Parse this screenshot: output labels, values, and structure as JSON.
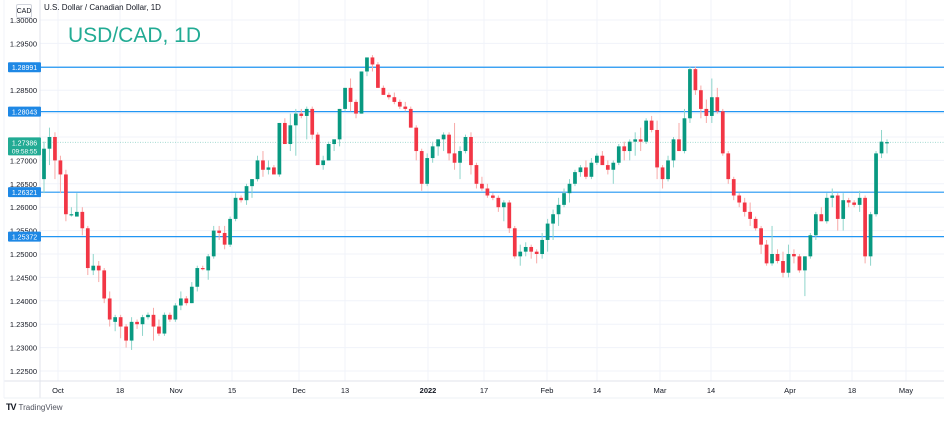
{
  "header": {
    "symbol_badge": "CAD",
    "legend": "U.S. Dollar / Canadian Dollar, 1D",
    "watermark": "USD/CAD, 1D"
  },
  "footer": {
    "logo_mark": "TV",
    "logo_text": "TradingView"
  },
  "colors": {
    "up": "#26a69a",
    "up_body": "#089981",
    "down": "#f23645",
    "down_wick": "#f7a9a7",
    "up_wick": "#8fd5cb",
    "level_line": "#2196f3",
    "level_label_bg": "#1e88e5",
    "last_price_bg": "#22ab94",
    "grid": "#f0f3fa"
  },
  "price_axis": {
    "ticks": [
      "1.30000",
      "1.29500",
      "1.28500",
      "1.27000",
      "1.26500",
      "1.26000",
      "1.25500",
      "1.25000",
      "1.24500",
      "1.24000",
      "1.23500",
      "1.23000",
      "1.22500"
    ],
    "level_labels": [
      "1.28991",
      "1.28043",
      "1.26321",
      "1.25372"
    ],
    "last_price": "1.27386",
    "countdown": "09:58:55"
  },
  "time_axis": {
    "labels": [
      "Oct",
      "18",
      "Nov",
      "15",
      "Dec",
      "13",
      "2022",
      "17",
      "Feb",
      "14",
      "Mar",
      "14",
      "Apr",
      "18",
      "May"
    ]
  },
  "chart_data": {
    "type": "candlestick",
    "title": "USD/CAD, 1D",
    "subtitle": "U.S. Dollar / Canadian Dollar, 1D",
    "xlabel": "",
    "ylabel": "CAD",
    "ylim": [
      1.2225,
      1.3005
    ],
    "grid": true,
    "x_tick_labels": [
      "Oct",
      "18",
      "Nov",
      "15",
      "Dec",
      "13",
      "2022",
      "17",
      "Feb",
      "14",
      "Mar",
      "14",
      "Apr",
      "18",
      "May"
    ],
    "y_tick_labels": [
      1.3,
      1.295,
      1.29,
      1.285,
      1.28,
      1.275,
      1.27,
      1.265,
      1.26,
      1.255,
      1.25,
      1.245,
      1.24,
      1.235,
      1.23,
      1.225
    ],
    "horizontal_levels": [
      1.28991,
      1.28043,
      1.26321,
      1.25372
    ],
    "last_price": 1.27386,
    "annotations": [
      "USD/CAD, 1D"
    ],
    "candles": [
      [
        1.266,
        1.274,
        1.263,
        1.2725
      ],
      [
        1.2725,
        1.277,
        1.269,
        1.275
      ],
      [
        1.275,
        1.276,
        1.266,
        1.27
      ],
      [
        1.27,
        1.271,
        1.263,
        1.267
      ],
      [
        1.267,
        1.268,
        1.257,
        1.2585
      ],
      [
        1.2585,
        1.26,
        1.258,
        1.2585
      ],
      [
        1.258,
        1.263,
        1.258,
        1.259
      ],
      [
        1.259,
        1.26,
        1.254,
        1.2555
      ],
      [
        1.2555,
        1.256,
        1.2455,
        1.247
      ],
      [
        1.2465,
        1.25,
        1.2455,
        1.2475
      ],
      [
        1.2475,
        1.2485,
        1.244,
        1.2465
      ],
      [
        1.2465,
        1.247,
        1.2395,
        1.2405
      ],
      [
        1.2405,
        1.242,
        1.2345,
        1.236
      ],
      [
        1.2355,
        1.237,
        1.2335,
        1.2365
      ],
      [
        1.2365,
        1.237,
        1.232,
        1.2345
      ],
      [
        1.2345,
        1.235,
        1.23,
        1.2315
      ],
      [
        1.2315,
        1.2365,
        1.2295,
        1.2355
      ],
      [
        1.2355,
        1.236,
        1.234,
        1.235
      ],
      [
        1.235,
        1.237,
        1.2325,
        1.2365
      ],
      [
        1.2365,
        1.2375,
        1.236,
        1.237
      ],
      [
        1.237,
        1.2385,
        1.2315,
        1.2345
      ],
      [
        1.2345,
        1.236,
        1.2325,
        1.233
      ],
      [
        1.233,
        1.2375,
        1.2325,
        1.237
      ],
      [
        1.237,
        1.2375,
        1.2355,
        1.236
      ],
      [
        1.236,
        1.2395,
        1.2355,
        1.239
      ],
      [
        1.239,
        1.242,
        1.238,
        1.2405
      ],
      [
        1.2405,
        1.241,
        1.239,
        1.2395
      ],
      [
        1.2395,
        1.244,
        1.2395,
        1.243
      ],
      [
        1.243,
        1.2475,
        1.242,
        1.247
      ],
      [
        1.247,
        1.2475,
        1.2465,
        1.2468
      ],
      [
        1.2465,
        1.25,
        1.2445,
        1.2495
      ],
      [
        1.2495,
        1.256,
        1.249,
        1.255
      ],
      [
        1.255,
        1.256,
        1.253,
        1.2545
      ],
      [
        1.2545,
        1.256,
        1.251,
        1.252
      ],
      [
        1.252,
        1.258,
        1.2515,
        1.2575
      ],
      [
        1.2575,
        1.263,
        1.257,
        1.262
      ],
      [
        1.262,
        1.2625,
        1.261,
        1.2615
      ],
      [
        1.2615,
        1.265,
        1.2605,
        1.2645
      ],
      [
        1.2645,
        1.266,
        1.262,
        1.266
      ],
      [
        1.266,
        1.271,
        1.2655,
        1.27
      ],
      [
        1.27,
        1.272,
        1.2665,
        1.268
      ],
      [
        1.268,
        1.27,
        1.267,
        1.2685
      ],
      [
        1.2685,
        1.269,
        1.267,
        1.267
      ],
      [
        1.267,
        1.278,
        1.2665,
        1.278
      ],
      [
        1.278,
        1.279,
        1.2735,
        1.2735
      ],
      [
        1.2735,
        1.28,
        1.272,
        1.2775
      ],
      [
        1.2775,
        1.281,
        1.271,
        1.28
      ],
      [
        1.28,
        1.281,
        1.279,
        1.2795
      ],
      [
        1.2795,
        1.2815,
        1.2745,
        1.281
      ],
      [
        1.281,
        1.2815,
        1.2745,
        1.2755
      ],
      [
        1.2755,
        1.276,
        1.269,
        1.269
      ],
      [
        1.269,
        1.271,
        1.268,
        1.27
      ],
      [
        1.27,
        1.274,
        1.27,
        1.2735
      ],
      [
        1.2735,
        1.2745,
        1.272,
        1.2745
      ],
      [
        1.2745,
        1.281,
        1.273,
        1.281
      ],
      [
        1.281,
        1.2855,
        1.2805,
        1.2855
      ],
      [
        1.2855,
        1.2875,
        1.2805,
        1.2825
      ],
      [
        1.2825,
        1.283,
        1.279,
        1.28
      ],
      [
        1.28,
        1.289,
        1.28,
        1.289
      ],
      [
        1.289,
        1.292,
        1.288,
        1.292
      ],
      [
        1.292,
        1.2925,
        1.289,
        1.2905
      ],
      [
        1.2905,
        1.291,
        1.2855,
        1.2855
      ],
      [
        1.2855,
        1.286,
        1.284,
        1.284
      ],
      [
        1.284,
        1.2845,
        1.283,
        1.2835
      ],
      [
        1.2835,
        1.2845,
        1.282,
        1.2825
      ],
      [
        1.2825,
        1.283,
        1.281,
        1.2815
      ],
      [
        1.2815,
        1.2825,
        1.2805,
        1.281
      ],
      [
        1.281,
        1.2815,
        1.277,
        1.277
      ],
      [
        1.277,
        1.2775,
        1.27,
        1.272
      ],
      [
        1.272,
        1.2725,
        1.2635,
        1.265
      ],
      [
        1.265,
        1.2715,
        1.2645,
        1.2705
      ],
      [
        1.2705,
        1.274,
        1.2695,
        1.273
      ],
      [
        1.273,
        1.2745,
        1.271,
        1.2745
      ],
      [
        1.2745,
        1.276,
        1.272,
        1.2755
      ],
      [
        1.2755,
        1.276,
        1.27,
        1.2715
      ],
      [
        1.2715,
        1.278,
        1.268,
        1.2695
      ],
      [
        1.2695,
        1.273,
        1.266,
        1.272
      ],
      [
        1.272,
        1.2755,
        1.2715,
        1.275
      ],
      [
        1.275,
        1.276,
        1.267,
        1.269
      ],
      [
        1.269,
        1.2695,
        1.264,
        1.265
      ],
      [
        1.265,
        1.2665,
        1.2635,
        1.264
      ],
      [
        1.264,
        1.265,
        1.262,
        1.2625
      ],
      [
        1.2625,
        1.263,
        1.2615,
        1.262
      ],
      [
        1.262,
        1.2625,
        1.259,
        1.26
      ],
      [
        1.26,
        1.2615,
        1.257,
        1.261
      ],
      [
        1.261,
        1.2615,
        1.2545,
        1.2555
      ],
      [
        1.2555,
        1.256,
        1.249,
        1.2495
      ],
      [
        1.2495,
        1.252,
        1.2475,
        1.2505
      ],
      [
        1.2505,
        1.2525,
        1.2495,
        1.2515
      ],
      [
        1.2515,
        1.252,
        1.249,
        1.2505
      ],
      [
        1.2505,
        1.251,
        1.248,
        1.25
      ],
      [
        1.25,
        1.2545,
        1.249,
        1.253
      ],
      [
        1.253,
        1.2575,
        1.2505,
        1.2565
      ],
      [
        1.2565,
        1.2595,
        1.253,
        1.2585
      ],
      [
        1.2585,
        1.262,
        1.256,
        1.2605
      ],
      [
        1.2605,
        1.264,
        1.26,
        1.263
      ],
      [
        1.263,
        1.266,
        1.261,
        1.265
      ],
      [
        1.265,
        1.268,
        1.2645,
        1.2675
      ],
      [
        1.2675,
        1.269,
        1.2665,
        1.2685
      ],
      [
        1.2685,
        1.27,
        1.266,
        1.2665
      ],
      [
        1.2665,
        1.2705,
        1.266,
        1.2695
      ],
      [
        1.2695,
        1.2715,
        1.269,
        1.271
      ],
      [
        1.271,
        1.272,
        1.269,
        1.269
      ],
      [
        1.269,
        1.27,
        1.267,
        1.268
      ],
      [
        1.268,
        1.27,
        1.265,
        1.2695
      ],
      [
        1.2695,
        1.2735,
        1.269,
        1.273
      ],
      [
        1.273,
        1.274,
        1.27,
        1.272
      ],
      [
        1.272,
        1.2745,
        1.27,
        1.274
      ],
      [
        1.274,
        1.276,
        1.271,
        1.2745
      ],
      [
        1.2745,
        1.277,
        1.272,
        1.274
      ],
      [
        1.274,
        1.279,
        1.2735,
        1.2785
      ],
      [
        1.2785,
        1.2795,
        1.276,
        1.2765
      ],
      [
        1.2765,
        1.2785,
        1.266,
        1.2685
      ],
      [
        1.2685,
        1.269,
        1.264,
        1.266
      ],
      [
        1.266,
        1.271,
        1.2655,
        1.27
      ],
      [
        1.27,
        1.275,
        1.2685,
        1.2745
      ],
      [
        1.2745,
        1.278,
        1.272,
        1.272
      ],
      [
        1.272,
        1.281,
        1.2715,
        1.279
      ],
      [
        1.279,
        1.29,
        1.278,
        1.2895
      ],
      [
        1.2895,
        1.29,
        1.284,
        1.285
      ],
      [
        1.285,
        1.286,
        1.279,
        1.281
      ],
      [
        1.281,
        1.283,
        1.278,
        1.2795
      ],
      [
        1.2795,
        1.2875,
        1.278,
        1.2835
      ],
      [
        1.2835,
        1.2855,
        1.28,
        1.2805
      ],
      [
        1.2805,
        1.281,
        1.271,
        1.2715
      ],
      [
        1.2715,
        1.272,
        1.265,
        1.266
      ],
      [
        1.266,
        1.2665,
        1.2615,
        1.2625
      ],
      [
        1.2625,
        1.263,
        1.26,
        1.261
      ],
      [
        1.261,
        1.262,
        1.258,
        1.259
      ],
      [
        1.259,
        1.261,
        1.256,
        1.2575
      ],
      [
        1.2575,
        1.258,
        1.255,
        1.2555
      ],
      [
        1.2555,
        1.256,
        1.25,
        1.252
      ],
      [
        1.252,
        1.253,
        1.2475,
        1.248
      ],
      [
        1.248,
        1.256,
        1.2475,
        1.25
      ],
      [
        1.25,
        1.251,
        1.248,
        1.2485
      ],
      [
        1.2485,
        1.2505,
        1.245,
        1.246
      ],
      [
        1.246,
        1.252,
        1.245,
        1.25
      ],
      [
        1.25,
        1.251,
        1.248,
        1.2495
      ],
      [
        1.2495,
        1.25,
        1.246,
        1.2465
      ],
      [
        1.2465,
        1.2495,
        1.241,
        1.2495
      ],
      [
        1.2495,
        1.2545,
        1.249,
        1.254
      ],
      [
        1.254,
        1.259,
        1.253,
        1.2585
      ],
      [
        1.2585,
        1.26,
        1.257,
        1.257
      ],
      [
        1.257,
        1.263,
        1.2565,
        1.262
      ],
      [
        1.262,
        1.264,
        1.26,
        1.2625
      ],
      [
        1.2625,
        1.263,
        1.255,
        1.2575
      ],
      [
        1.2575,
        1.263,
        1.255,
        1.2615
      ],
      [
        1.2615,
        1.262,
        1.26,
        1.261
      ],
      [
        1.261,
        1.2615,
        1.26,
        1.2605
      ],
      [
        1.2605,
        1.2635,
        1.259,
        1.262
      ],
      [
        1.262,
        1.2625,
        1.248,
        1.2495
      ],
      [
        1.2495,
        1.259,
        1.2475,
        1.2585
      ],
      [
        1.2585,
        1.272,
        1.258,
        1.2715
      ],
      [
        1.2715,
        1.2765,
        1.2705,
        1.274
      ],
      [
        1.2738,
        1.2745,
        1.2715,
        1.2739
      ]
    ]
  }
}
